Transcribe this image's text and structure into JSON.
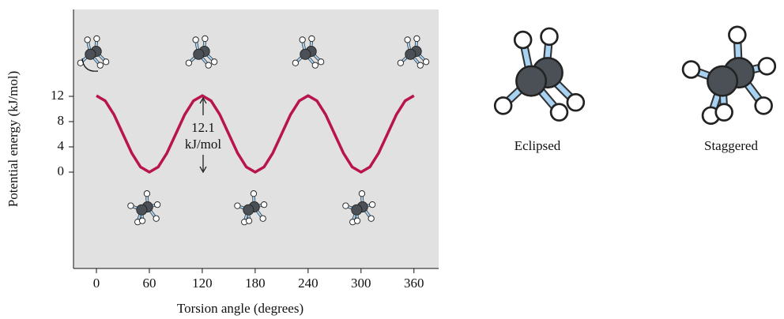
{
  "chart_data": {
    "type": "line",
    "xlabel": "Torsion angle (degrees)",
    "ylabel": "Potential energy (kJ/mol)",
    "annotation": [
      "12.1",
      "kJ/mol"
    ],
    "x": [
      0,
      10,
      20,
      30,
      40,
      50,
      60,
      70,
      80,
      90,
      100,
      110,
      120,
      130,
      140,
      150,
      160,
      170,
      180,
      190,
      200,
      210,
      220,
      230,
      240,
      250,
      260,
      270,
      280,
      290,
      300,
      310,
      320,
      330,
      340,
      350,
      360
    ],
    "values": [
      12.1,
      11.29,
      9.08,
      6.05,
      3.03,
      0.81,
      0,
      0.81,
      3.03,
      6.05,
      9.08,
      11.29,
      12.1,
      11.29,
      9.08,
      6.05,
      3.03,
      0.81,
      0,
      0.81,
      3.03,
      6.05,
      9.08,
      11.29,
      12.1,
      11.29,
      9.08,
      6.05,
      3.03,
      0.81,
      0,
      0.81,
      3.03,
      6.05,
      9.08,
      11.29,
      12.1
    ],
    "color": "#b8154f",
    "xlim": [
      -26,
      388
    ],
    "ylim": [
      -15.25,
      25.75
    ],
    "xticks": [
      0,
      60,
      120,
      180,
      240,
      300,
      360
    ],
    "yticks": [
      0,
      4,
      8,
      12
    ]
  },
  "illustrations": [
    "Eclipsed",
    "Staggered"
  ]
}
